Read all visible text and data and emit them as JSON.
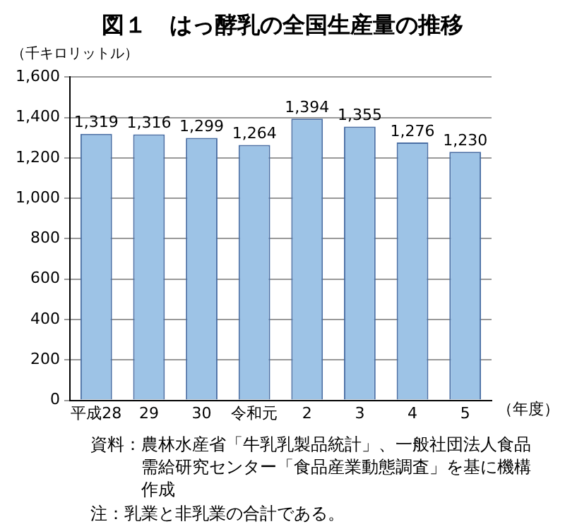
{
  "chart_data": {
    "type": "bar",
    "title": "図１　はっ酵乳の全国生産量の推移",
    "ylabel": "（千キロリットル）",
    "xlabel": "（年度）",
    "categories": [
      "平成28",
      "29",
      "30",
      "令和元",
      "2",
      "3",
      "4",
      "5"
    ],
    "values": [
      1319,
      1316,
      1299,
      1264,
      1394,
      1355,
      1276,
      1230
    ],
    "value_labels": [
      "1,319",
      "1,316",
      "1,299",
      "1,264",
      "1,394",
      "1,355",
      "1,276",
      "1,230"
    ],
    "color": "#9dc3e6",
    "ylim": [
      0,
      1600
    ],
    "yticks": [
      0,
      200,
      400,
      600,
      800,
      {
        "value": 1000,
        "label": "1,000"
      },
      {
        "value": 1200,
        "label": "1,200"
      },
      {
        "value": 1400,
        "label": "1,400"
      },
      {
        "value": 1600,
        "label": "1,600"
      }
    ],
    "grid": "y",
    "annotations": [
      "資料：農林水産省「牛乳乳製品統計」、一般社団法人食品需給研究センター「食品産業動態調査」を基に機構作成",
      "注：乳業と非乳業の合計である。"
    ]
  }
}
